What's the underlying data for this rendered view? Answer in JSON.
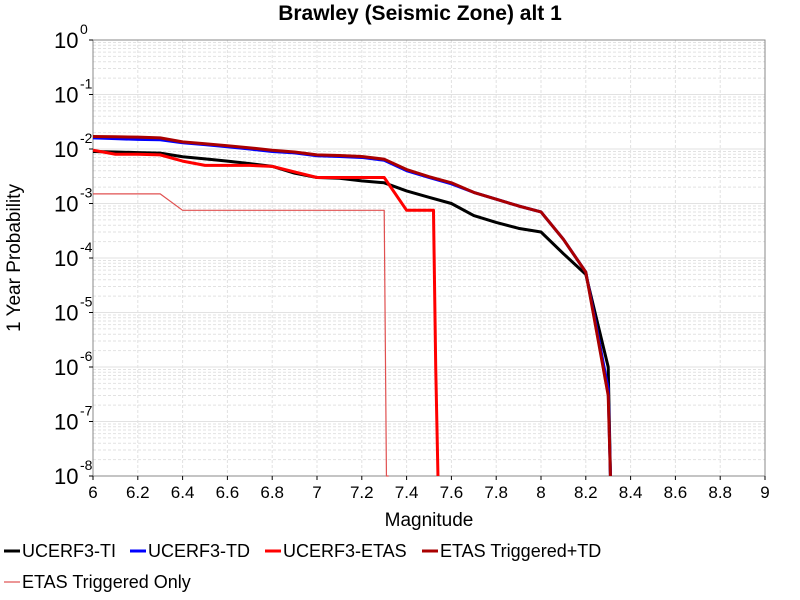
{
  "chart_data": {
    "type": "line",
    "title": "Brawley (Seismic Zone) alt 1",
    "xlabel": "Magnitude",
    "ylabel": "1 Year Probability",
    "xlim": [
      6,
      9
    ],
    "ylim": [
      1e-08,
      1
    ],
    "yscale": "log",
    "grid": true,
    "legend_position": "bottom",
    "x_ticks": [
      "6",
      "6.2",
      "6.4",
      "6.6",
      "6.8",
      "7",
      "7.2",
      "7.4",
      "7.6",
      "7.8",
      "8",
      "8.2",
      "8.4",
      "8.6",
      "8.8",
      "9"
    ],
    "y_ticks": [
      {
        "base": "10",
        "exp": "0"
      },
      {
        "base": "10",
        "exp": "-1"
      },
      {
        "base": "10",
        "exp": "-2"
      },
      {
        "base": "10",
        "exp": "-3"
      },
      {
        "base": "10",
        "exp": "-4"
      },
      {
        "base": "10",
        "exp": "-5"
      },
      {
        "base": "10",
        "exp": "-6"
      },
      {
        "base": "10",
        "exp": "-7"
      },
      {
        "base": "10",
        "exp": "-8"
      }
    ],
    "series": [
      {
        "name": "UCERF3-TI",
        "color": "#000000",
        "x": [
          6.0,
          6.1,
          6.2,
          6.3,
          6.4,
          6.5,
          6.6,
          6.7,
          6.8,
          6.9,
          7.0,
          7.1,
          7.2,
          7.3,
          7.4,
          7.5,
          7.6,
          7.7,
          7.8,
          7.9,
          8.0,
          8.1,
          8.2,
          8.3,
          8.31
        ],
        "y": [
          0.009,
          0.0088,
          0.0086,
          0.0084,
          0.0072,
          0.0066,
          0.006,
          0.0054,
          0.0048,
          0.0036,
          0.003,
          0.0029,
          0.0026,
          0.0024,
          0.0017,
          0.0013,
          0.001,
          0.0006,
          0.00045,
          0.00035,
          0.0003,
          0.00012,
          5e-05,
          1e-06,
          1e-08
        ]
      },
      {
        "name": "UCERF3-TD",
        "color": "#0000ff",
        "x": [
          6.0,
          6.1,
          6.2,
          6.3,
          6.4,
          6.5,
          6.6,
          6.7,
          6.8,
          6.9,
          7.0,
          7.1,
          7.2,
          7.3,
          7.4,
          7.5,
          7.6,
          7.7,
          7.8,
          7.9,
          8.0,
          8.1,
          8.2,
          8.3,
          8.31
        ],
        "y": [
          0.016,
          0.0155,
          0.015,
          0.0148,
          0.013,
          0.012,
          0.011,
          0.01,
          0.009,
          0.0085,
          0.0075,
          0.0073,
          0.007,
          0.0062,
          0.004,
          0.003,
          0.0023,
          0.0016,
          0.0012,
          0.0009,
          0.0007,
          0.00022,
          5.5e-05,
          4e-07,
          1e-08
        ]
      },
      {
        "name": "UCERF3-ETAS",
        "color": "#ff0000",
        "x": [
          6.0,
          6.1,
          6.2,
          6.3,
          6.4,
          6.5,
          6.6,
          6.7,
          6.8,
          6.9,
          7.0,
          7.1,
          7.2,
          7.3,
          7.4,
          7.5,
          7.52,
          7.53,
          7.54
        ],
        "y": [
          0.0095,
          0.008,
          0.008,
          0.0078,
          0.006,
          0.005,
          0.005,
          0.005,
          0.0048,
          0.0038,
          0.003,
          0.003,
          0.003,
          0.003,
          0.00075,
          0.00075,
          0.00075,
          1e-06,
          1e-08
        ]
      },
      {
        "name": "ETAS Triggered+TD",
        "color": "#aa0000",
        "x": [
          6.0,
          6.1,
          6.2,
          6.3,
          6.4,
          6.5,
          6.6,
          6.7,
          6.8,
          6.9,
          7.0,
          7.1,
          7.2,
          7.3,
          7.4,
          7.5,
          7.6,
          7.7,
          7.8,
          7.9,
          8.0,
          8.1,
          8.2,
          8.3,
          8.31
        ],
        "y": [
          0.017,
          0.0168,
          0.0165,
          0.016,
          0.0135,
          0.0125,
          0.0115,
          0.0105,
          0.0095,
          0.0088,
          0.0078,
          0.0076,
          0.0073,
          0.0065,
          0.0042,
          0.0031,
          0.0024,
          0.0016,
          0.0012,
          0.0009,
          0.0007,
          0.00022,
          5.5e-05,
          3e-07,
          1e-08
        ]
      },
      {
        "name": "ETAS Triggered Only",
        "color": "#e05050",
        "x": [
          6.0,
          6.1,
          6.2,
          6.3,
          6.4,
          6.5,
          6.6,
          6.7,
          6.8,
          6.9,
          7.0,
          7.1,
          7.2,
          7.3,
          7.31,
          7.32
        ],
        "y": [
          0.0015,
          0.0015,
          0.0015,
          0.0015,
          0.00075,
          0.00075,
          0.00075,
          0.00075,
          0.00075,
          0.00075,
          0.00075,
          0.00075,
          0.00075,
          0.00075,
          1e-08,
          1e-08
        ]
      }
    ]
  }
}
